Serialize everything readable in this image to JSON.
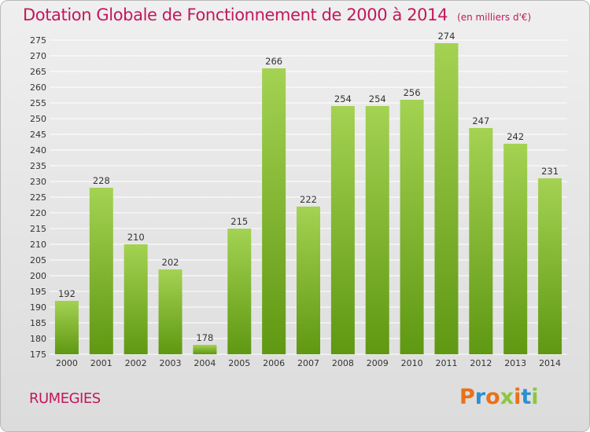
{
  "header": {
    "title": "Dotation Globale de Fonctionnement de 2000 à 2014",
    "subtitle": "(en milliers d'€)"
  },
  "footer": {
    "commune": "RUMEGIES",
    "logo_text": "Proxiti",
    "logo_colors": [
      "#e8711a",
      "#2e8fd0",
      "#e8711a",
      "#8dc63f",
      "#e8711a",
      "#2e8fd0",
      "#8dc63f"
    ]
  },
  "colors": {
    "title": "#c2185b",
    "bar_top": "#a4d252",
    "bar_bottom": "#5f9812",
    "grid": "#ffffff"
  },
  "chart_data": {
    "type": "bar",
    "categories": [
      "2000",
      "2001",
      "2002",
      "2003",
      "2004",
      "2005",
      "2006",
      "2007",
      "2008",
      "2009",
      "2010",
      "2011",
      "2012",
      "2013",
      "2014"
    ],
    "values": [
      192,
      228,
      210,
      202,
      178,
      215,
      266,
      222,
      254,
      254,
      256,
      274,
      247,
      242,
      231
    ],
    "ylim": [
      175,
      275
    ],
    "yticks": [
      175,
      180,
      185,
      190,
      195,
      200,
      205,
      210,
      215,
      220,
      225,
      230,
      235,
      240,
      245,
      250,
      255,
      260,
      265,
      270,
      275
    ],
    "grid": true
  }
}
